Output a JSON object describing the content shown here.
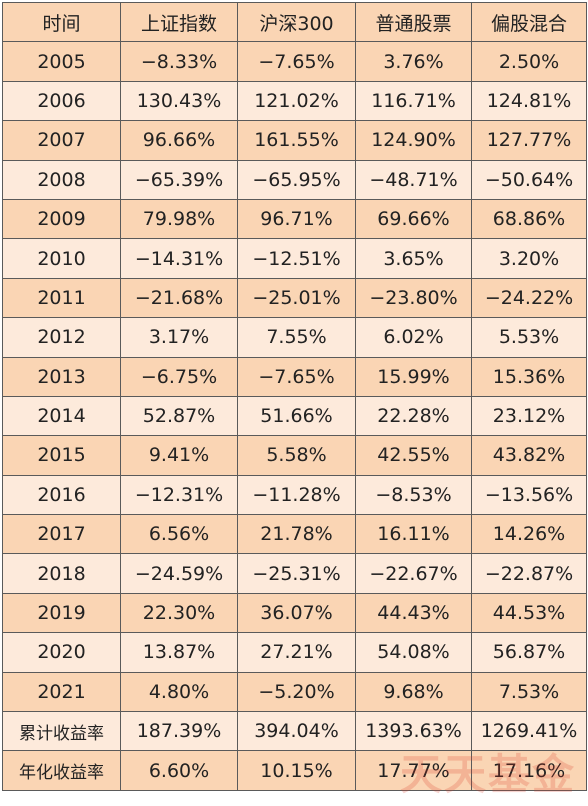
{
  "table": {
    "header": [
      "时间",
      "上证指数",
      "沪深300",
      "普通股票",
      "偏股混合"
    ],
    "rows": [
      [
        "2005",
        "−8.33%",
        "−7.65%",
        "3.76%",
        "2.50%"
      ],
      [
        "2006",
        "130.43%",
        "121.02%",
        "116.71%",
        "124.81%"
      ],
      [
        "2007",
        "96.66%",
        "161.55%",
        "124.90%",
        "127.77%"
      ],
      [
        "2008",
        "−65.39%",
        "−65.95%",
        "−48.71%",
        "−50.64%"
      ],
      [
        "2009",
        "79.98%",
        "96.71%",
        "69.66%",
        "68.86%"
      ],
      [
        "2010",
        "−14.31%",
        "−12.51%",
        "3.65%",
        "3.20%"
      ],
      [
        "2011",
        "−21.68%",
        "−25.01%",
        "−23.80%",
        "−24.22%"
      ],
      [
        "2012",
        "3.17%",
        "7.55%",
        "6.02%",
        "5.53%"
      ],
      [
        "2013",
        "−6.75%",
        "−7.65%",
        "15.99%",
        "15.36%"
      ],
      [
        "2014",
        "52.87%",
        "51.66%",
        "22.28%",
        "23.12%"
      ],
      [
        "2015",
        "9.41%",
        "5.58%",
        "42.55%",
        "43.82%"
      ],
      [
        "2016",
        "−12.31%",
        "−11.28%",
        "−8.53%",
        "−13.56%"
      ],
      [
        "2017",
        "6.56%",
        "21.78%",
        "16.11%",
        "14.26%"
      ],
      [
        "2018",
        "−24.59%",
        "−25.31%",
        "−22.67%",
        "−22.87%"
      ],
      [
        "2019",
        "22.30%",
        "36.07%",
        "44.43%",
        "44.53%"
      ],
      [
        "2020",
        "13.87%",
        "27.21%",
        "54.08%",
        "56.87%"
      ],
      [
        "2021",
        "4.80%",
        "−5.20%",
        "9.68%",
        "7.53%"
      ],
      [
        "累计收益率",
        "187.39%",
        "394.04%",
        "1393.63%",
        "1269.41%"
      ],
      [
        "年化收益率",
        "6.60%",
        "10.15%",
        "17.77%",
        "17.16%"
      ]
    ]
  },
  "watermark": "天天基金"
}
